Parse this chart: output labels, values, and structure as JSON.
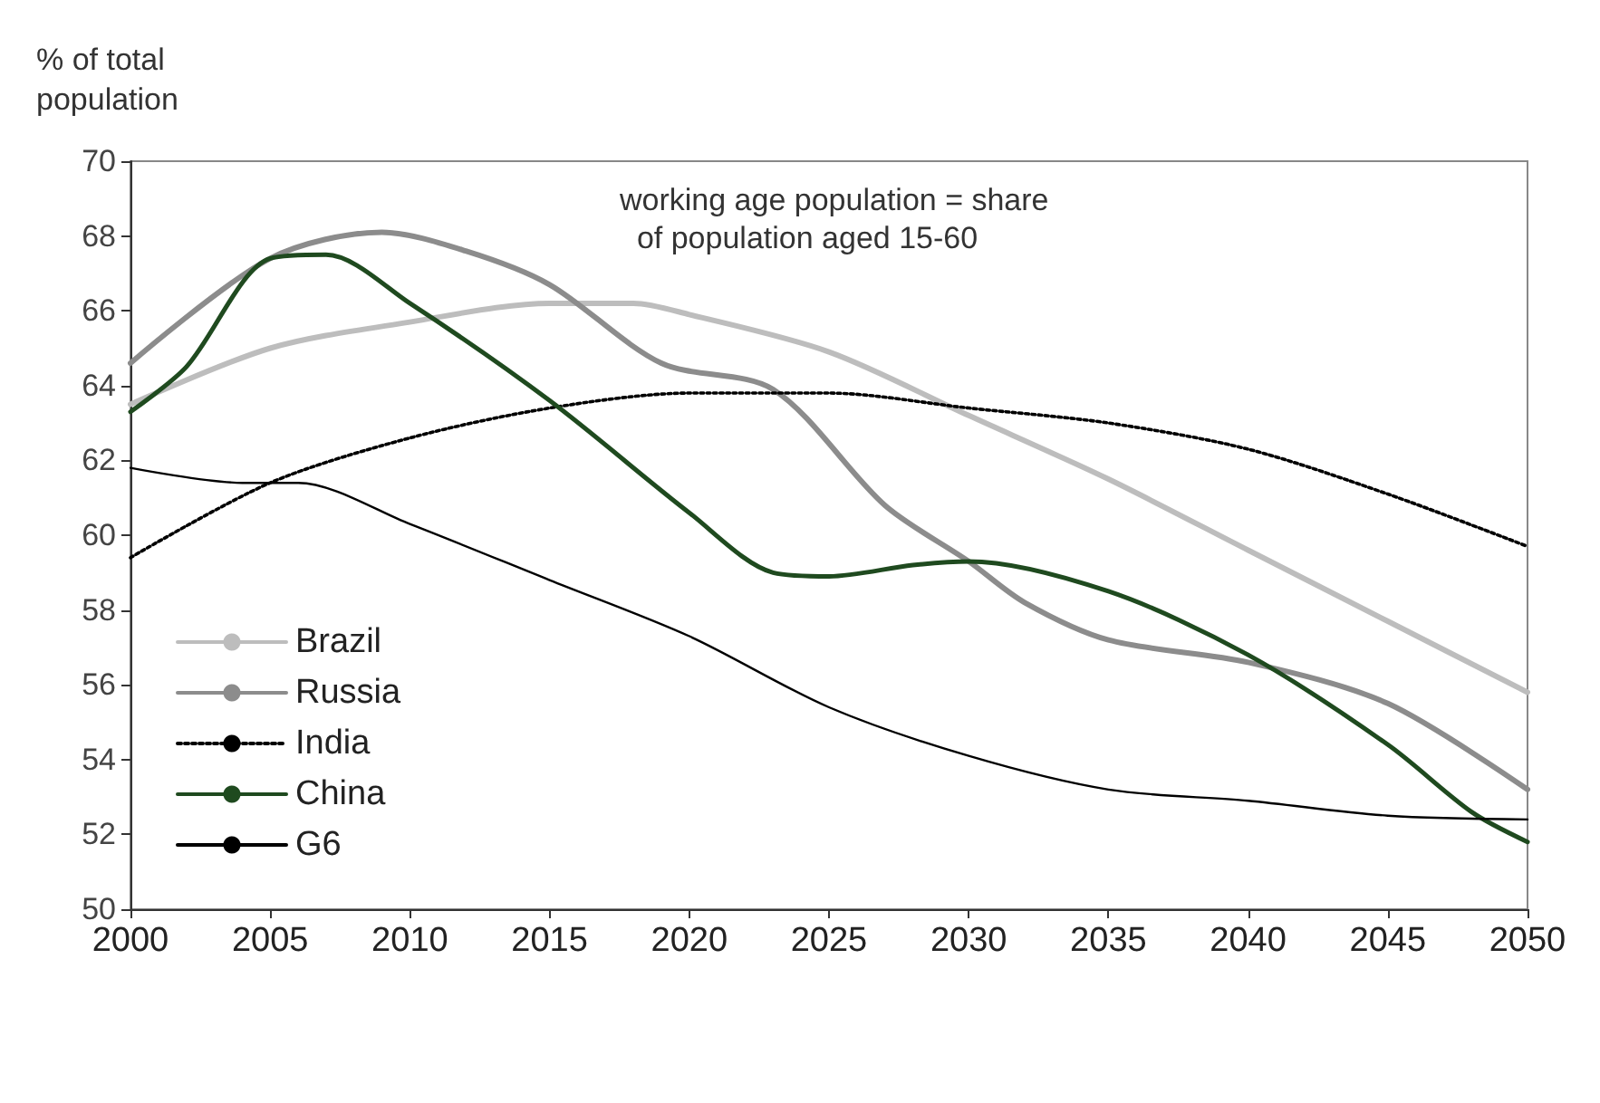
{
  "chart_data": {
    "type": "line",
    "ylabel": "% of total population",
    "annotations": [
      "working age population = share of population aged 15-60"
    ],
    "xlim": [
      2000,
      2050
    ],
    "xticks": [
      2000,
      2005,
      2010,
      2015,
      2020,
      2025,
      2030,
      2035,
      2040,
      2045,
      2050
    ],
    "ylim": [
      50,
      70
    ],
    "yticks": [
      50,
      52,
      54,
      56,
      58,
      60,
      62,
      64,
      66,
      68,
      70
    ],
    "grid": false,
    "legend": "bottom left",
    "marker": "none",
    "series": [
      {
        "name": "Brazil",
        "color": "#bdbdbd",
        "x": [
          2000,
          2005,
          2010,
          2015,
          2018,
          2020,
          2025,
          2030,
          2035,
          2040,
          2045,
          2050
        ],
        "values": [
          63.5,
          65.0,
          65.7,
          66.2,
          66.2,
          65.9,
          64.9,
          63.2,
          61.5,
          59.6,
          57.7,
          55.8
        ]
      },
      {
        "name": "Russia",
        "color": "#8c8c8c",
        "x": [
          2000,
          2005,
          2009,
          2012,
          2015,
          2019,
          2023,
          2027,
          2030,
          2032,
          2035,
          2040,
          2045,
          2050
        ],
        "values": [
          64.6,
          67.4,
          68.1,
          67.6,
          66.7,
          64.6,
          63.9,
          60.8,
          59.3,
          58.2,
          57.2,
          56.6,
          55.5,
          53.2
        ]
      },
      {
        "name": "India",
        "color": "#000000",
        "line_style": "dotted",
        "x": [
          2000,
          2005,
          2010,
          2015,
          2020,
          2025,
          2030,
          2035,
          2040,
          2045,
          2050
        ],
        "values": [
          59.4,
          61.4,
          62.6,
          63.4,
          63.8,
          63.8,
          63.4,
          63.0,
          62.3,
          61.1,
          59.7
        ]
      },
      {
        "name": "China",
        "color": "#1f4a1f",
        "x": [
          2000,
          2002,
          2005,
          2007,
          2010,
          2015,
          2020,
          2023,
          2025,
          2028,
          2030,
          2035,
          2040,
          2045,
          2048,
          2050
        ],
        "values": [
          63.3,
          64.5,
          67.4,
          67.5,
          66.2,
          63.6,
          60.6,
          59.0,
          58.9,
          59.2,
          59.3,
          58.5,
          56.8,
          54.4,
          52.6,
          51.8
        ]
      },
      {
        "name": "G6",
        "color": "#000000",
        "x": [
          2000,
          2004,
          2006,
          2010,
          2015,
          2020,
          2025,
          2030,
          2035,
          2040,
          2045,
          2050
        ],
        "values": [
          61.8,
          61.4,
          61.4,
          60.3,
          58.8,
          57.3,
          55.4,
          54.1,
          53.2,
          52.9,
          52.5,
          52.4
        ]
      }
    ]
  }
}
